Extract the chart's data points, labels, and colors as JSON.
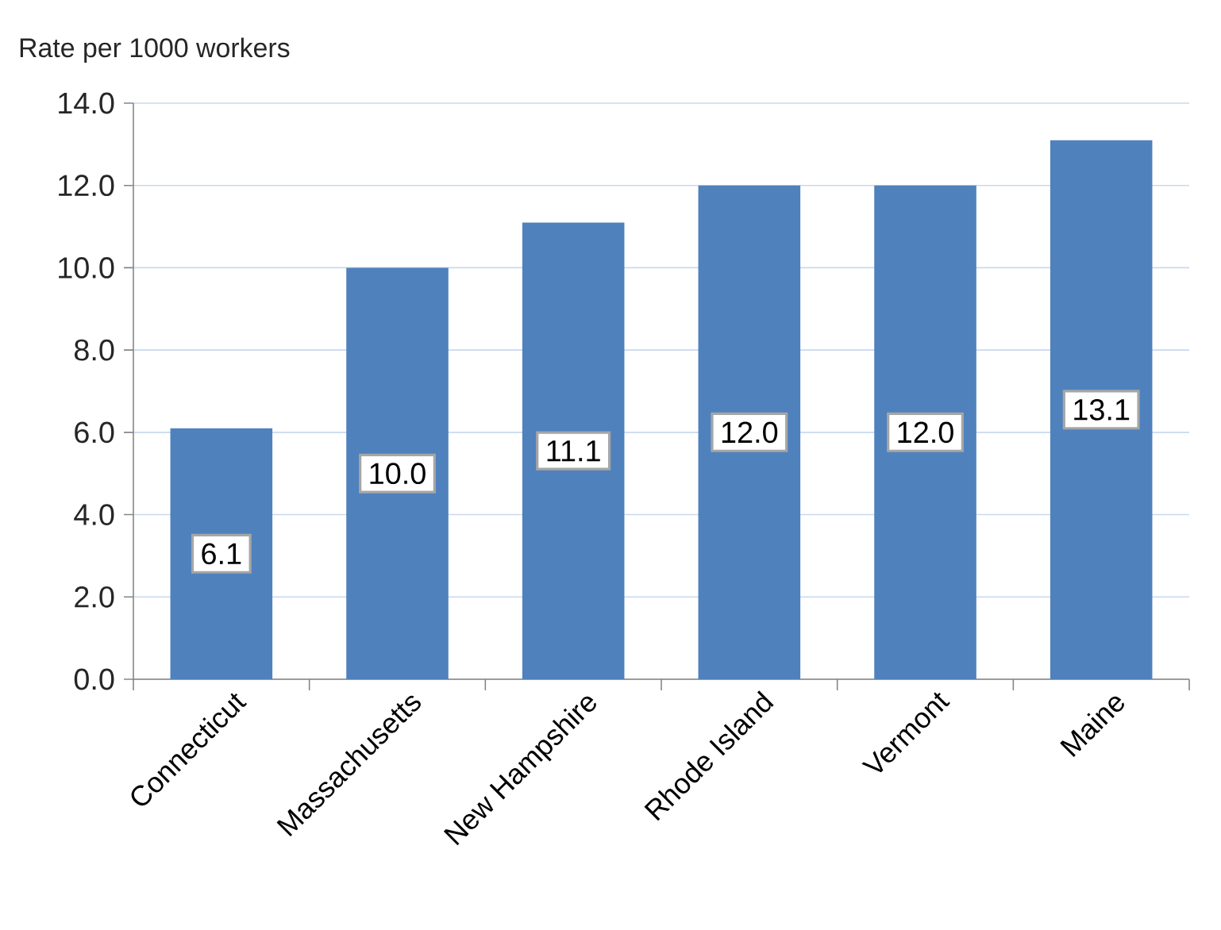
{
  "chart_data": {
    "type": "bar",
    "ylabel": "Rate per 1000 workers",
    "categories": [
      "Connecticut",
      "Massachusetts",
      "New Hampshire",
      "Rhode Island",
      "Vermont",
      "Maine"
    ],
    "values": [
      6.1,
      10.0,
      11.1,
      12.0,
      12.0,
      13.1
    ],
    "value_labels": [
      "6.1",
      "10.0",
      "11.1",
      "12.0",
      "12.0",
      "13.1"
    ],
    "color": "#4f81bd",
    "ylim": [
      0,
      14
    ],
    "yticks": [
      {
        "value": 0,
        "label": "0.0"
      },
      {
        "value": 2,
        "label": "2.0"
      },
      {
        "value": 4,
        "label": "4.0"
      },
      {
        "value": 6,
        "label": "6.0"
      },
      {
        "value": 8,
        "label": "8.0"
      },
      {
        "value": 10,
        "label": "10.0"
      },
      {
        "value": 12,
        "label": "12.0"
      },
      {
        "value": 14,
        "label": "14.0"
      }
    ],
    "grid": "y"
  }
}
